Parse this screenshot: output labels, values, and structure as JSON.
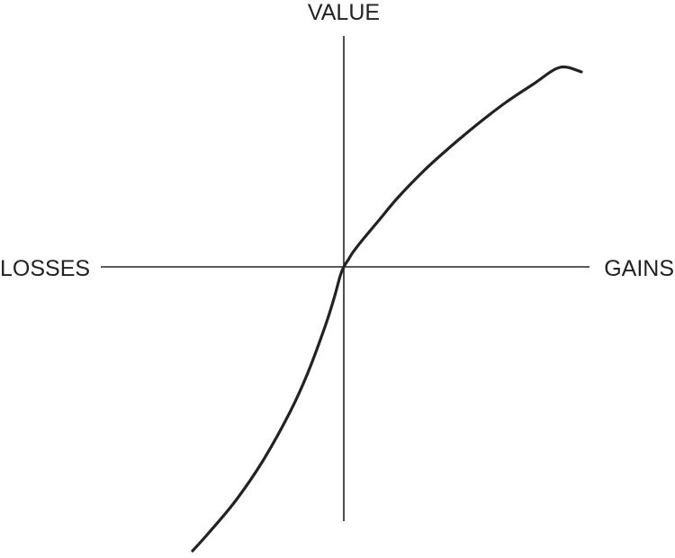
{
  "chart_data": {
    "type": "line",
    "title": "",
    "xlabel_left": "LOSSES",
    "xlabel_right": "GAINS",
    "ylabel": "VALUE",
    "grid": false,
    "axes_style": "crossed at origin, no ticks",
    "line_color": "#222222",
    "series": [
      {
        "x": [
          -168,
          -150,
          -120,
          -90,
          -60,
          -40,
          -20,
          -10,
          -4,
          0,
          5,
          10,
          20,
          40,
          60,
          90,
          120,
          150,
          180,
          210,
          240,
          264
        ],
        "y": [
          -316,
          -296,
          -260,
          -216,
          -162,
          -118,
          -64,
          -32,
          -10,
          0,
          8,
          16,
          29,
          53,
          77,
          108,
          135,
          160,
          183,
          203,
          222,
          217
        ]
      }
    ]
  }
}
